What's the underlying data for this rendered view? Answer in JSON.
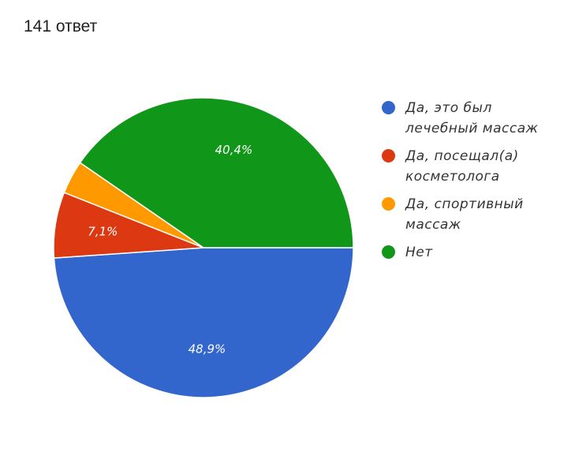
{
  "header": {
    "response_count": "141 ответ"
  },
  "chart_data": {
    "type": "pie",
    "slices": [
      {
        "label": "Да, это был лечебный массаж",
        "value": 48.9,
        "display": "48,9%",
        "color": "#3366cc"
      },
      {
        "label": "Да, посещал(а) косметолога",
        "value": 7.1,
        "display": "7,1%",
        "color": "#dc3912"
      },
      {
        "label": "Да, спортивный массаж",
        "value": 3.6,
        "display": "",
        "color": "#ff9900"
      },
      {
        "label": "Нет",
        "value": 40.4,
        "display": "40,4%",
        "color": "#109618"
      }
    ],
    "legend_position": "right",
    "start_angle_deg": 0,
    "direction": "clockwise"
  }
}
